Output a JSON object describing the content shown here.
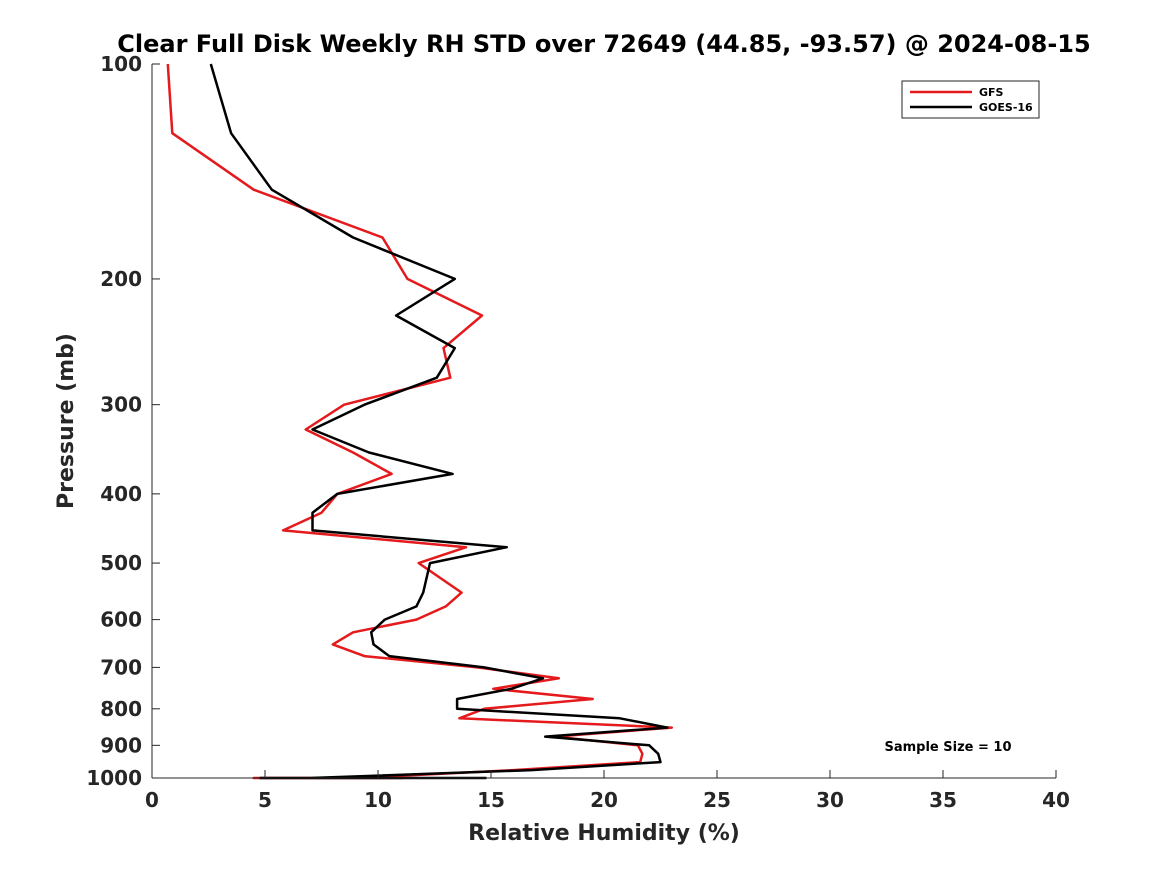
{
  "chart_data": {
    "type": "line",
    "title": "Clear Full Disk Weekly RH STD over 72649 (44.85, -93.57) @ 2024-08-15",
    "xlabel": "Relative Humidity (%)",
    "ylabel": "Pressure (mb)",
    "xlim": [
      0,
      40
    ],
    "ylim": [
      1000,
      100
    ],
    "yscale": "log",
    "x_ticks": [
      "0",
      "5",
      "10",
      "15",
      "20",
      "25",
      "30",
      "35",
      "40"
    ],
    "y_ticks": [
      "100",
      "200",
      "300",
      "400",
      "500",
      "600",
      "700",
      "800",
      "900",
      "1000"
    ],
    "grid": false,
    "legend_position": "top-right",
    "annotation": "Sample Size = 10",
    "series": [
      {
        "name": "GFS",
        "color": "#e41a1c",
        "points": [
          [
            0.7,
            100
          ],
          [
            0.9,
            125
          ],
          [
            4.5,
            150
          ],
          [
            10.2,
            175
          ],
          [
            11.3,
            200
          ],
          [
            14.6,
            225
          ],
          [
            12.9,
            250
          ],
          [
            13.2,
            275
          ],
          [
            8.5,
            300
          ],
          [
            6.8,
            325
          ],
          [
            8.9,
            350
          ],
          [
            10.6,
            375
          ],
          [
            8.2,
            400
          ],
          [
            7.5,
            425
          ],
          [
            5.8,
            450
          ],
          [
            13.9,
            475
          ],
          [
            11.8,
            500
          ],
          [
            13.7,
            550
          ],
          [
            13.0,
            575
          ],
          [
            11.7,
            600
          ],
          [
            8.9,
            625
          ],
          [
            8.0,
            650
          ],
          [
            9.4,
            675
          ],
          [
            14.4,
            700
          ],
          [
            18.0,
            725
          ],
          [
            15.1,
            750
          ],
          [
            19.5,
            775
          ],
          [
            14.7,
            800
          ],
          [
            13.6,
            825
          ],
          [
            23.0,
            850
          ],
          [
            17.8,
            875
          ],
          [
            21.5,
            900
          ],
          [
            21.7,
            925
          ],
          [
            21.6,
            950
          ],
          [
            16.0,
            975
          ],
          [
            9.0,
            1000
          ],
          [
            7.3,
            1000
          ],
          [
            6.5,
            1000
          ],
          [
            4.5,
            1000
          ],
          [
            11.1,
            1000
          ]
        ]
      },
      {
        "name": "GOES-16",
        "color": "#000000",
        "points": [
          [
            2.6,
            100
          ],
          [
            3.5,
            125
          ],
          [
            5.3,
            150
          ],
          [
            8.9,
            175
          ],
          [
            13.4,
            200
          ],
          [
            10.8,
            225
          ],
          [
            13.4,
            250
          ],
          [
            12.6,
            275
          ],
          [
            9.4,
            300
          ],
          [
            7.1,
            325
          ],
          [
            9.6,
            350
          ],
          [
            13.3,
            375
          ],
          [
            8.2,
            400
          ],
          [
            7.1,
            425
          ],
          [
            7.1,
            450
          ],
          [
            15.7,
            475
          ],
          [
            12.3,
            500
          ],
          [
            12.0,
            550
          ],
          [
            11.7,
            575
          ],
          [
            10.3,
            600
          ],
          [
            9.7,
            625
          ],
          [
            9.8,
            650
          ],
          [
            10.5,
            675
          ],
          [
            14.7,
            700
          ],
          [
            17.3,
            725
          ],
          [
            15.9,
            750
          ],
          [
            13.5,
            775
          ],
          [
            13.5,
            800
          ],
          [
            20.7,
            825
          ],
          [
            22.8,
            850
          ],
          [
            17.4,
            875
          ],
          [
            22.0,
            900
          ],
          [
            22.4,
            925
          ],
          [
            22.5,
            950
          ],
          [
            16.8,
            975
          ],
          [
            7.0,
            1000
          ],
          [
            5.9,
            1000
          ],
          [
            6.8,
            1000
          ],
          [
            5.1,
            1000
          ],
          [
            4.8,
            1000
          ],
          [
            14.8,
            1000
          ]
        ]
      }
    ]
  }
}
